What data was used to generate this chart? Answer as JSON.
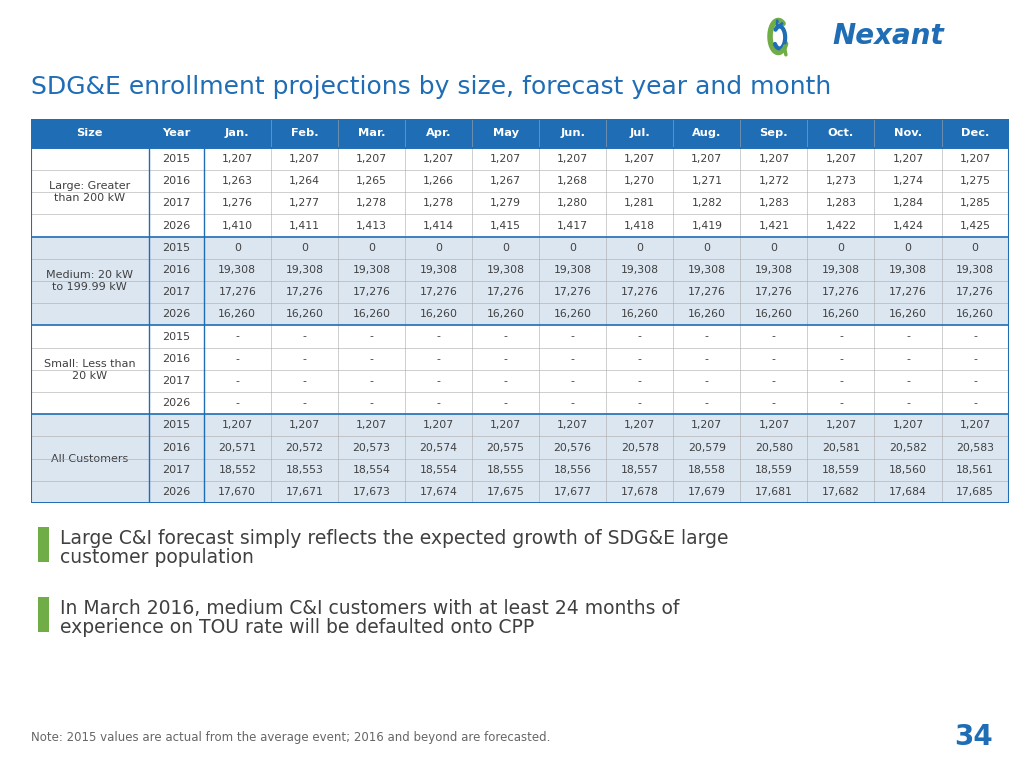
{
  "title": "SDG&E enrollment projections by size, forecast year and month",
  "header_bg": "#1F6DB5",
  "header_text_color": "#FFFFFF",
  "header_labels": [
    "Size",
    "Year",
    "Jan.",
    "Feb.",
    "Mar.",
    "Apr.",
    "May",
    "Jun.",
    "Jul.",
    "Aug.",
    "Sep.",
    "Oct.",
    "Nov.",
    "Dec."
  ],
  "table_rows": [
    [
      "Large: Greater\nthan 200 kW",
      "2015",
      "1,207",
      "1,207",
      "1,207",
      "1,207",
      "1,207",
      "1,207",
      "1,207",
      "1,207",
      "1,207",
      "1,207",
      "1,207",
      "1,207"
    ],
    [
      "",
      "2016",
      "1,263",
      "1,264",
      "1,265",
      "1,266",
      "1,267",
      "1,268",
      "1,270",
      "1,271",
      "1,272",
      "1,273",
      "1,274",
      "1,275"
    ],
    [
      "",
      "2017",
      "1,276",
      "1,277",
      "1,278",
      "1,278",
      "1,279",
      "1,280",
      "1,281",
      "1,282",
      "1,283",
      "1,283",
      "1,284",
      "1,285"
    ],
    [
      "",
      "2026",
      "1,410",
      "1,411",
      "1,413",
      "1,414",
      "1,415",
      "1,417",
      "1,418",
      "1,419",
      "1,421",
      "1,422",
      "1,424",
      "1,425"
    ],
    [
      "Medium: 20 kW\nto 199.99 kW",
      "2015",
      "0",
      "0",
      "0",
      "0",
      "0",
      "0",
      "0",
      "0",
      "0",
      "0",
      "0",
      "0"
    ],
    [
      "",
      "2016",
      "19,308",
      "19,308",
      "19,308",
      "19,308",
      "19,308",
      "19,308",
      "19,308",
      "19,308",
      "19,308",
      "19,308",
      "19,308",
      "19,308"
    ],
    [
      "",
      "2017",
      "17,276",
      "17,276",
      "17,276",
      "17,276",
      "17,276",
      "17,276",
      "17,276",
      "17,276",
      "17,276",
      "17,276",
      "17,276",
      "17,276"
    ],
    [
      "",
      "2026",
      "16,260",
      "16,260",
      "16,260",
      "16,260",
      "16,260",
      "16,260",
      "16,260",
      "16,260",
      "16,260",
      "16,260",
      "16,260",
      "16,260"
    ],
    [
      "Small: Less than\n20 kW",
      "2015",
      "-",
      "-",
      "-",
      "-",
      "-",
      "-",
      "-",
      "-",
      "-",
      "-",
      "-",
      "-"
    ],
    [
      "",
      "2016",
      "-",
      "-",
      "-",
      "-",
      "-",
      "-",
      "-",
      "-",
      "-",
      "-",
      "-",
      "-"
    ],
    [
      "",
      "2017",
      "-",
      "-",
      "-",
      "-",
      "-",
      "-",
      "-",
      "-",
      "-",
      "-",
      "-",
      "-"
    ],
    [
      "",
      "2026",
      "-",
      "-",
      "-",
      "-",
      "-",
      "-",
      "-",
      "-",
      "-",
      "-",
      "-",
      "-"
    ],
    [
      "All Customers",
      "2015",
      "1,207",
      "1,207",
      "1,207",
      "1,207",
      "1,207",
      "1,207",
      "1,207",
      "1,207",
      "1,207",
      "1,207",
      "1,207",
      "1,207"
    ],
    [
      "",
      "2016",
      "20,571",
      "20,572",
      "20,573",
      "20,574",
      "20,575",
      "20,576",
      "20,578",
      "20,579",
      "20,580",
      "20,581",
      "20,582",
      "20,583"
    ],
    [
      "",
      "2017",
      "18,552",
      "18,553",
      "18,554",
      "18,554",
      "18,555",
      "18,556",
      "18,557",
      "18,558",
      "18,559",
      "18,559",
      "18,560",
      "18,561"
    ],
    [
      "",
      "2026",
      "17,670",
      "17,671",
      "17,673",
      "17,674",
      "17,675",
      "17,677",
      "17,678",
      "17,679",
      "17,681",
      "17,682",
      "17,684",
      "17,685"
    ]
  ],
  "section_info": [
    [
      0,
      3,
      "Large: Greater\nthan 200 kW"
    ],
    [
      4,
      7,
      "Medium: 20 kW\nto 199.99 kW"
    ],
    [
      8,
      11,
      "Small: Less than\n20 kW"
    ],
    [
      12,
      15,
      "All Customers"
    ]
  ],
  "bullet1_line1": "Large C&I forecast simply reflects the expected growth of SDG&E large",
  "bullet1_line2": "customer population",
  "bullet2_line1": "In March 2016, medium C&I customers with at least 24 months of",
  "bullet2_line2": "experience on TOU rate will be defaulted onto CPP",
  "note": "Note: 2015 values are actual from the average event; 2016 and beyond are forecasted.",
  "page_num": "34",
  "bullet_color": "#70AD47",
  "text_color": "#404040",
  "blue_color": "#1F6DB5",
  "border_color": "#1F6DB5",
  "alt_row_bg": "#DCE6F1",
  "white_bg": "#FFFFFF",
  "grid_color": "#AAAAAA",
  "nexant_green": "#70AD47",
  "nexant_blue": "#1F6DB5"
}
